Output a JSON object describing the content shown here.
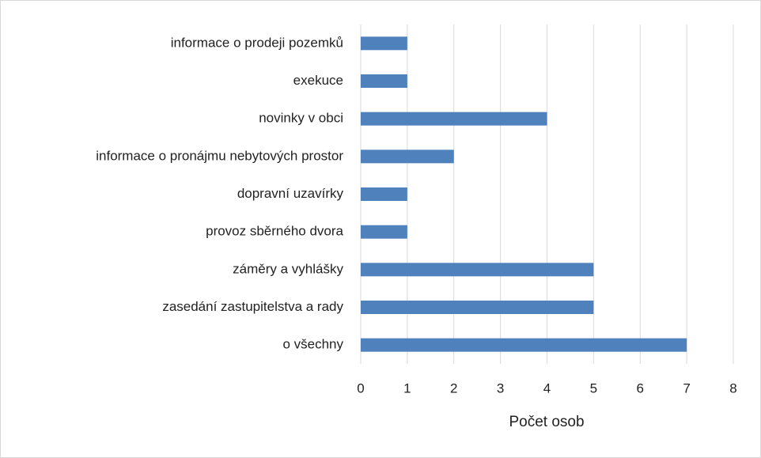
{
  "chart_data": {
    "type": "barh",
    "categories": [
      "informace o prodeji pozemků",
      "exekuce",
      "novinky v obci",
      "informace o pronájmu nebytových prostor",
      "dopravní uzavírky",
      "provoz sběrného dvora",
      "záměry a vyhlášky",
      "zasedání zastupitelstva a rady",
      "o všechny"
    ],
    "values": [
      1,
      1,
      4,
      2,
      1,
      1,
      5,
      5,
      7
    ],
    "color": "#4f81bd",
    "xlabel": "Počet osob",
    "xlim": [
      0,
      8
    ],
    "xticks": [
      0,
      1,
      2,
      3,
      4,
      5,
      6,
      7,
      8
    ],
    "grid": true
  }
}
